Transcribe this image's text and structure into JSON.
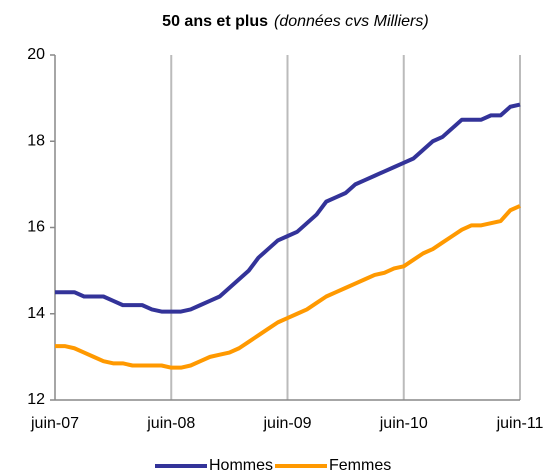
{
  "chart_data": {
    "type": "line",
    "title": "50 ans et plus",
    "subtitle": "(données cvs Milliers)",
    "categories": [
      "juin-07",
      null,
      null,
      null,
      null,
      null,
      null,
      null,
      null,
      null,
      null,
      null,
      "juin-08",
      null,
      null,
      null,
      null,
      null,
      null,
      null,
      null,
      null,
      null,
      null,
      "juin-09",
      null,
      null,
      null,
      null,
      null,
      null,
      null,
      null,
      null,
      null,
      null,
      "juin-10",
      null,
      null,
      null,
      null,
      null,
      null,
      null,
      null,
      null,
      null,
      null,
      "juin-11"
    ],
    "series": [
      {
        "name": "Hommes",
        "color": "#333399",
        "values": [
          14.5,
          14.5,
          14.5,
          14.4,
          14.4,
          14.4,
          14.3,
          14.2,
          14.2,
          14.2,
          14.1,
          14.05,
          14.05,
          14.05,
          14.1,
          14.2,
          14.3,
          14.4,
          14.6,
          14.8,
          15.0,
          15.3,
          15.5,
          15.7,
          15.8,
          15.9,
          16.1,
          16.3,
          16.6,
          16.7,
          16.8,
          17.0,
          17.1,
          17.2,
          17.3,
          17.4,
          17.5,
          17.6,
          17.8,
          18.0,
          18.1,
          18.3,
          18.5,
          18.5,
          18.5,
          18.6,
          18.6,
          18.8,
          18.85
        ]
      },
      {
        "name": "Femmes",
        "color": "#ff9900",
        "values": [
          13.25,
          13.25,
          13.2,
          13.1,
          13.0,
          12.9,
          12.85,
          12.85,
          12.8,
          12.8,
          12.8,
          12.8,
          12.75,
          12.75,
          12.8,
          12.9,
          13.0,
          13.05,
          13.1,
          13.2,
          13.35,
          13.5,
          13.65,
          13.8,
          13.9,
          14.0,
          14.1,
          14.25,
          14.4,
          14.5,
          14.6,
          14.7,
          14.8,
          14.9,
          14.95,
          15.05,
          15.1,
          15.25,
          15.4,
          15.5,
          15.65,
          15.8,
          15.95,
          16.05,
          16.05,
          16.1,
          16.15,
          16.4,
          16.5
        ]
      }
    ],
    "ylim": [
      12,
      20
    ],
    "yticks": [
      12,
      14,
      16,
      18,
      20
    ],
    "grid": true,
    "legend": "bottom"
  }
}
